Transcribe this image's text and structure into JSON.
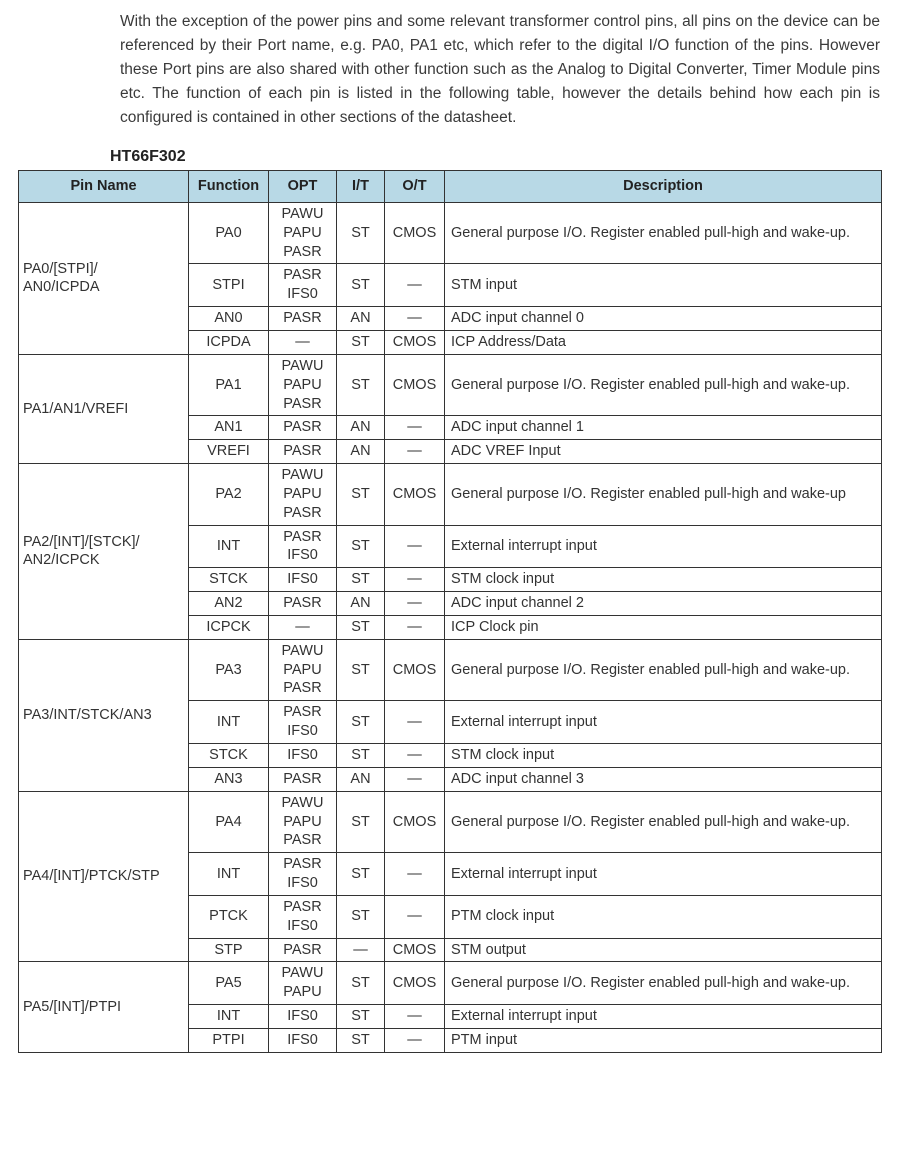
{
  "intro": "With the exception of the power pins and some relevant transformer control pins, all pins on the device can be referenced by their Port name, e.g. PA0, PA1 etc, which refer to the digital I/O function of the pins. However these Port pins are also shared with other function such as the Analog to Digital Converter, Timer Module pins etc. The function of each pin is listed in the following table, however the details behind how each pin is configured is contained in other sections of the datasheet.",
  "chip": "HT66F302",
  "columns": [
    "Pin Name",
    "Function",
    "OPT",
    "I/T",
    "O/T",
    "Description"
  ],
  "groups": [
    {
      "pin": "PA0/[STPI]/\nAN0/ICPDA",
      "rows": [
        {
          "func": "PA0",
          "opt": "PAWU\nPAPU\nPASR",
          "it": "ST",
          "ot": "CMOS",
          "desc": "General purpose I/O. Register enabled pull-high and wake-up."
        },
        {
          "func": "STPI",
          "opt": "PASR\nIFS0",
          "it": "ST",
          "ot": "—",
          "desc": "STM input"
        },
        {
          "func": "AN0",
          "opt": "PASR",
          "it": "AN",
          "ot": "—",
          "desc": "ADC input channel 0"
        },
        {
          "func": "ICPDA",
          "opt": "—",
          "it": "ST",
          "ot": "CMOS",
          "desc": "ICP Address/Data"
        }
      ]
    },
    {
      "pin": "PA1/AN1/VREFI",
      "rows": [
        {
          "func": "PA1",
          "opt": "PAWU\nPAPU\nPASR",
          "it": "ST",
          "ot": "CMOS",
          "desc": "General purpose I/O. Register enabled pull-high and wake-up."
        },
        {
          "func": "AN1",
          "opt": "PASR",
          "it": "AN",
          "ot": "—",
          "desc": "ADC input channel 1"
        },
        {
          "func": "VREFI",
          "opt": "PASR",
          "it": "AN",
          "ot": "—",
          "desc": "ADC VREF Input"
        }
      ]
    },
    {
      "pin": "PA2/[INT]/[STCK]/\nAN2/ICPCK",
      "rows": [
        {
          "func": "PA2",
          "opt": "PAWU\nPAPU\nPASR",
          "it": "ST",
          "ot": "CMOS",
          "desc": "General purpose I/O. Register enabled pull-high and wake-up"
        },
        {
          "func": "INT",
          "opt": "PASR\nIFS0",
          "it": "ST",
          "ot": "—",
          "desc": "External interrupt input"
        },
        {
          "func": "STCK",
          "opt": "IFS0",
          "it": "ST",
          "ot": "—",
          "desc": "STM clock input"
        },
        {
          "func": "AN2",
          "opt": "PASR",
          "it": "AN",
          "ot": "—",
          "desc": "ADC input channel 2"
        },
        {
          "func": "ICPCK",
          "opt": "—",
          "it": "ST",
          "ot": "—",
          "desc": "ICP Clock pin"
        }
      ]
    },
    {
      "pin": "PA3/INT/STCK/AN3",
      "rows": [
        {
          "func": "PA3",
          "opt": "PAWU\nPAPU\nPASR",
          "it": "ST",
          "ot": "CMOS",
          "desc": "General purpose I/O. Register enabled pull-high and wake-up."
        },
        {
          "func": "INT",
          "opt": "PASR\nIFS0",
          "it": "ST",
          "ot": "—",
          "desc": "External interrupt input"
        },
        {
          "func": "STCK",
          "opt": "IFS0",
          "it": "ST",
          "ot": "—",
          "desc": "STM clock input"
        },
        {
          "func": "AN3",
          "opt": "PASR",
          "it": "AN",
          "ot": "—",
          "desc": "ADC input channel 3"
        }
      ]
    },
    {
      "pin": "PA4/[INT]/PTCK/STP",
      "rows": [
        {
          "func": "PA4",
          "opt": "PAWU\nPAPU\nPASR",
          "it": "ST",
          "ot": "CMOS",
          "desc": "General purpose I/O. Register enabled pull-high and wake-up."
        },
        {
          "func": "INT",
          "opt": "PASR\nIFS0",
          "it": "ST",
          "ot": "—",
          "desc": "External interrupt input"
        },
        {
          "func": "PTCK",
          "opt": "PASR\nIFS0",
          "it": "ST",
          "ot": "—",
          "desc": "PTM clock input"
        },
        {
          "func": "STP",
          "opt": "PASR",
          "it": "—",
          "ot": "CMOS",
          "desc": "STM output"
        }
      ]
    },
    {
      "pin": "PA5/[INT]/PTPI",
      "rows": [
        {
          "func": "PA5",
          "opt": "PAWU\nPAPU",
          "it": "ST",
          "ot": "CMOS",
          "desc": "General purpose I/O. Register enabled pull-high and wake-up."
        },
        {
          "func": "INT",
          "opt": "IFS0",
          "it": "ST",
          "ot": "—",
          "desc": "External interrupt input"
        },
        {
          "func": "PTPI",
          "opt": "IFS0",
          "it": "ST",
          "ot": "—",
          "desc": "PTM input"
        }
      ]
    }
  ],
  "style": {
    "header_bg": "#b8d9e6",
    "border_color": "#333333",
    "text_color": "#333333",
    "font_family": "Arial"
  }
}
